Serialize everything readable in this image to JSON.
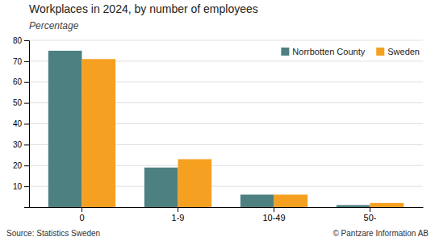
{
  "chart_data": {
    "type": "bar",
    "title": "Workplaces in 2024, by number of employees",
    "subtitle": "Percentage",
    "categories": [
      "0",
      "1-9",
      "10-49",
      "50-"
    ],
    "series": [
      {
        "name": "Norrbotten County",
        "color": "#4d8080",
        "values": [
          75.0,
          19.0,
          6.0,
          1.0
        ]
      },
      {
        "name": "Sweden",
        "color": "#f5a020",
        "values": [
          71.0,
          23.0,
          6.0,
          2.0
        ]
      }
    ],
    "ylim": [
      0,
      80
    ],
    "yticks": [
      10,
      20,
      30,
      40,
      50,
      60,
      70,
      80
    ],
    "grid": true,
    "legend": "upper right",
    "annotations": [
      "Source: Statistics Sweden",
      "© Pantzare Information AB"
    ]
  }
}
